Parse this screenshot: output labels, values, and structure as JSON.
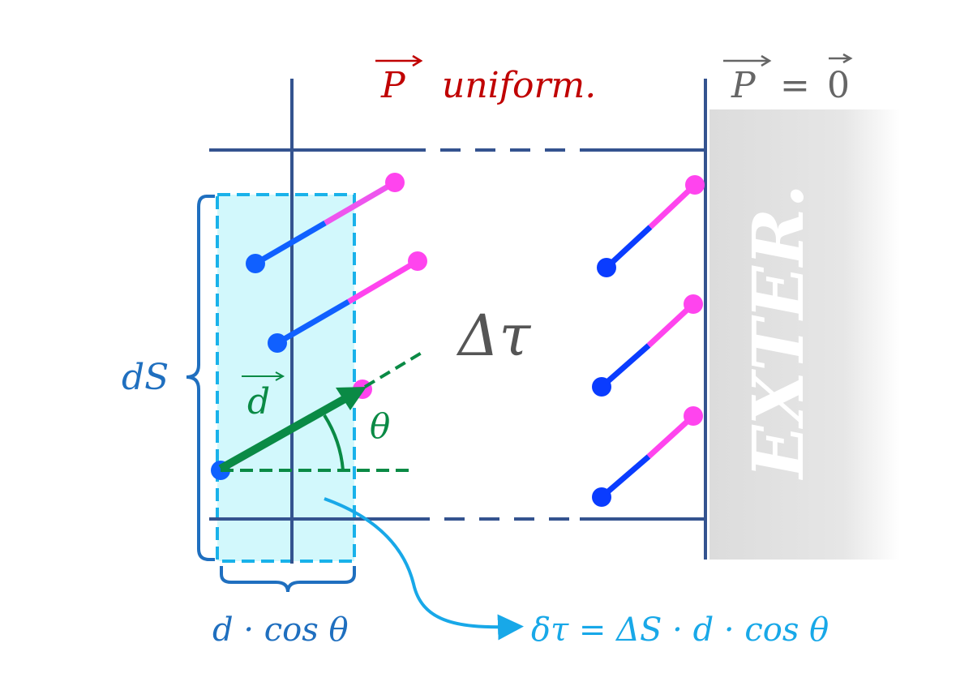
{
  "labels": {
    "p_uniform_symbol": "P",
    "p_uniform_text": "uniform.",
    "p_zero": "P = 0",
    "p_zero_p": "P",
    "p_zero_eq": "=",
    "p_zero_zero": "0",
    "exterior": "EXTER.",
    "delta_tau": "Δτ",
    "d_vector": "d",
    "theta": "θ",
    "dS": "dS",
    "d_cos_theta": "d · cos θ",
    "delta_tau_formula": "δτ = ΔS · d · cos θ"
  },
  "colors": {
    "red_text": "#c00000",
    "gray_text": "#666666",
    "frame": "#34538f",
    "cyan_fill": "#d2f8fc",
    "cyan_border": "#19b2ea",
    "dipole_negative": "#0a3cff",
    "dipole_positive": "#ff44ee",
    "green": "#0a8a45",
    "brace_blue": "#1f6fbf",
    "formula_cyan": "#18a8e8"
  }
}
